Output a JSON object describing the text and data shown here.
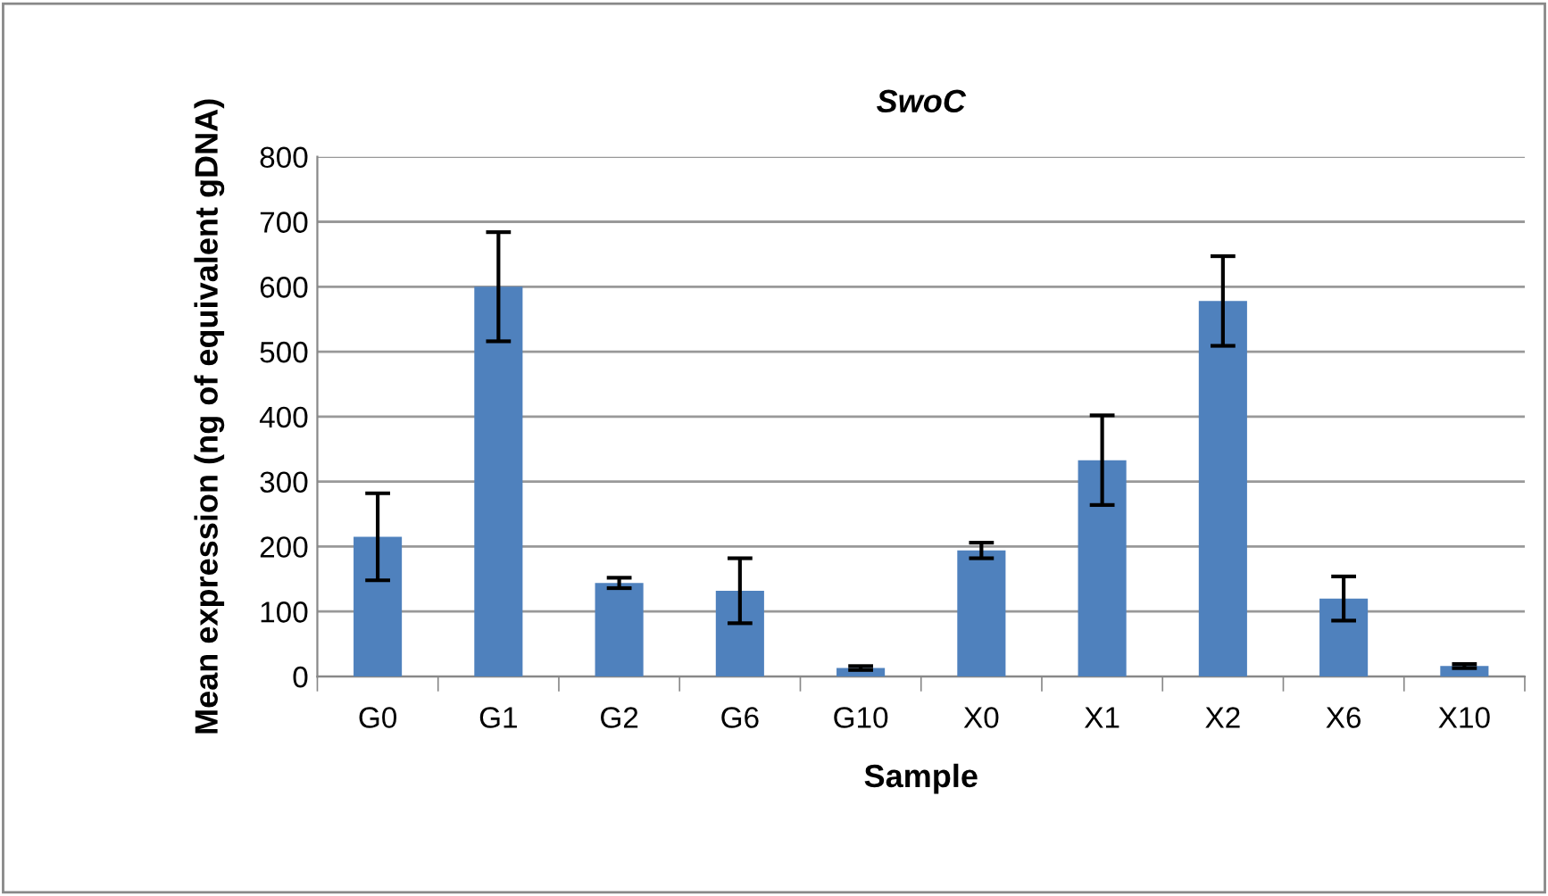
{
  "chart_data": {
    "type": "bar",
    "title": "SwoC",
    "xlabel": "Sample",
    "ylabel": "Mean expression (ng of equivalent gDNA)",
    "categories": [
      "G0",
      "G1",
      "G2",
      "G6",
      "G10",
      "X0",
      "X1",
      "X2",
      "X6",
      "X10"
    ],
    "values": [
      215,
      600,
      144,
      132,
      13,
      194,
      333,
      578,
      120,
      16
    ],
    "errors": [
      67,
      84,
      8,
      50,
      3,
      12,
      69,
      69,
      34,
      3
    ],
    "color": "#4f81bd",
    "ylim": [
      0,
      800
    ],
    "yticks": [
      0,
      100,
      200,
      300,
      400,
      500,
      600,
      700,
      800
    ],
    "grid": "y",
    "legend": false
  }
}
